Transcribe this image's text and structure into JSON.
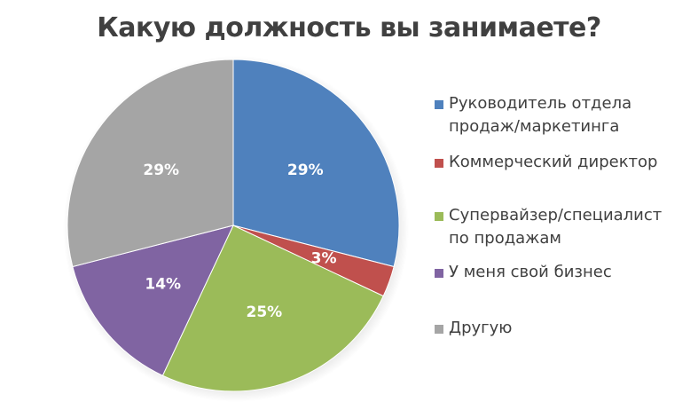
{
  "title": "Какую должность вы занимаете?",
  "chart_data": {
    "type": "pie",
    "title": "Какую должность вы занимаете?",
    "categories": [
      "Руководитель отдела продаж/маркетинга",
      "Коммерческий директор",
      "Супервайзер/специалист по продажам",
      "У меня свой бизнес",
      "Другую"
    ],
    "values": [
      29,
      3,
      25,
      14,
      29
    ],
    "labels": [
      "29%",
      "3%",
      "25%",
      "14%",
      "29%"
    ],
    "colors": [
      "#4f81bd",
      "#c0504d",
      "#9bbb59",
      "#8064a2",
      "#a5a5a5"
    ],
    "legend_position": "right",
    "start_angle": "12 o'clock, clockwise"
  },
  "legend": {
    "items": [
      {
        "label": "Руководитель отдела\nпродаж/маркетинга",
        "color": "#4f81bd"
      },
      {
        "label": "Коммерческий директор",
        "color": "#c0504d"
      },
      {
        "label": "Супервайзер/специалист\nпо продажам",
        "color": "#9bbb59"
      },
      {
        "label": "У меня свой бизнес",
        "color": "#8064a2"
      },
      {
        "label": "Другую",
        "color": "#a5a5a5"
      }
    ]
  }
}
